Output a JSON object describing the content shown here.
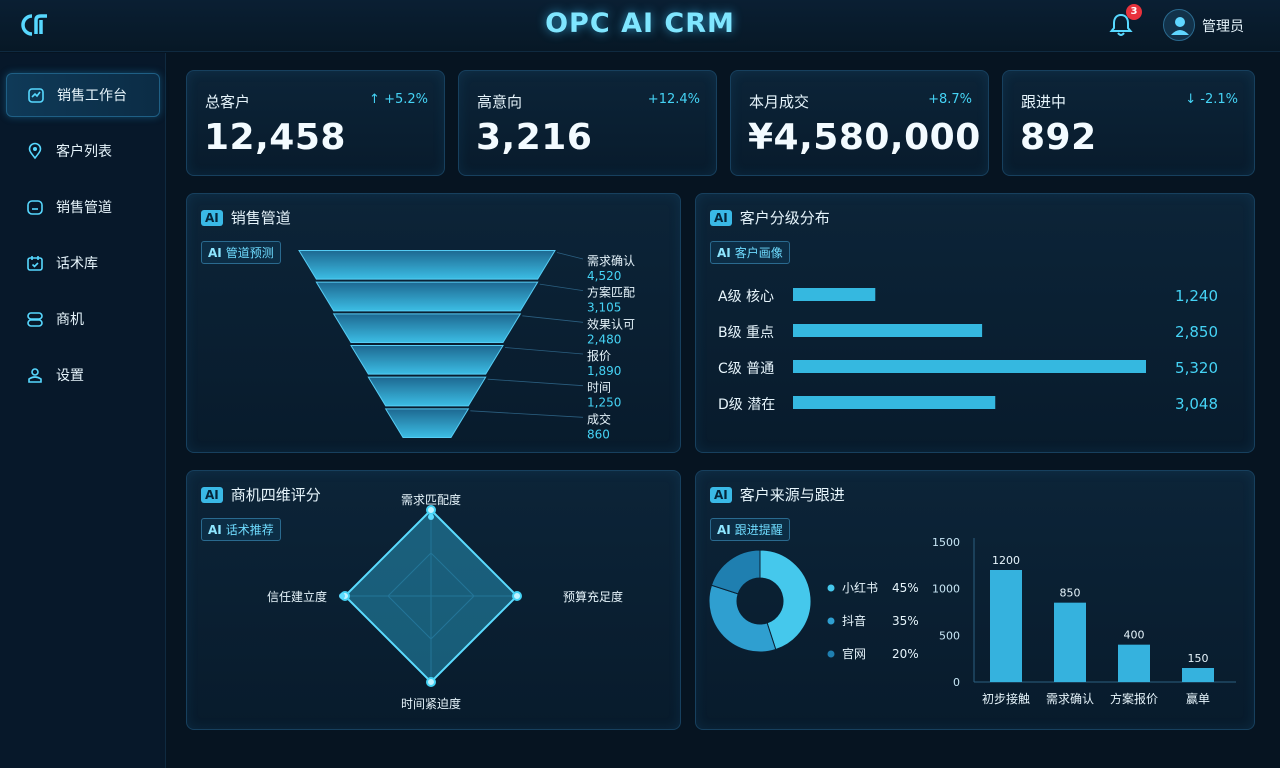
{
  "app": {
    "title": "OPC AI CRM",
    "notification_count": "3",
    "user_name": "管理员"
  },
  "sidebar": {
    "items": [
      {
        "label": "销售工作台",
        "icon": "dashboard-icon",
        "active": true
      },
      {
        "label": "客户列表",
        "icon": "location-pin-icon",
        "active": false
      },
      {
        "label": "销售管道",
        "icon": "pipeline-icon",
        "active": false
      },
      {
        "label": "话术库",
        "icon": "script-library-icon",
        "active": false
      },
      {
        "label": "商机",
        "icon": "opportunity-icon",
        "active": false
      },
      {
        "label": "设置",
        "icon": "settings-icon",
        "active": false
      }
    ]
  },
  "stats": [
    {
      "label": "总客户",
      "change": "↑ +5.2%",
      "value": "12,458"
    },
    {
      "label": "高意向",
      "change": "+12.4%",
      "value": "3,216"
    },
    {
      "label": "本月成交",
      "change": "+8.7%",
      "value": "¥4,580,000"
    },
    {
      "label": "跟进中",
      "change": "↓ -2.1%",
      "value": "892"
    }
  ],
  "panels": {
    "funnel": {
      "ai_badge": "AI",
      "title": "销售管道",
      "tag": "管道预测",
      "stages": [
        {
          "name": "需求确认",
          "value": "4,520"
        },
        {
          "name": "方案匹配",
          "value": "3,105"
        },
        {
          "name": "效果认可",
          "value": "2,480"
        },
        {
          "name": "报价",
          "value": "1,890"
        },
        {
          "name": "时间",
          "value": "1,250"
        },
        {
          "name": "成交",
          "value": "860"
        }
      ]
    },
    "grades": {
      "ai_badge": "AI",
      "title": "客户分级分布",
      "tag": "客户画像",
      "rows": [
        {
          "label": "A级  核心",
          "value": "1,240"
        },
        {
          "label": "B级  重点",
          "value": "2,850"
        },
        {
          "label": "C级  普通",
          "value": "5,320"
        },
        {
          "label": "D级  潜在",
          "value": "3,048"
        }
      ]
    },
    "radar": {
      "ai_badge": "AI",
      "title": "商机四维评分",
      "tag": "话术推荐",
      "axes": [
        "需求匹配度",
        "预算充足度",
        "时间紧迫度",
        "信任建立度"
      ]
    },
    "sources": {
      "ai_badge": "AI",
      "title": "客户来源与跟进",
      "tag": "跟进提醒",
      "legend": [
        {
          "name": "小红书",
          "pct": "45%"
        },
        {
          "name": "抖音",
          "pct": "35%"
        },
        {
          "name": "官网",
          "pct": "20%"
        }
      ]
    },
    "tag_ai_mark": "AI"
  },
  "chart_data": [
    {
      "type": "funnel",
      "categories": [
        "需求确认",
        "方案匹配",
        "效果认可",
        "报价",
        "时间",
        "成交"
      ],
      "values": [
        4520,
        3105,
        2480,
        1890,
        1250,
        860
      ]
    },
    {
      "type": "bar",
      "orientation": "horizontal",
      "categories": [
        "A级  核心",
        "B级  重点",
        "C级  普通",
        "D级  潜在"
      ],
      "values": [
        1240,
        2850,
        5320,
        3048
      ]
    },
    {
      "type": "radar",
      "categories": [
        "需求匹配度",
        "预算充足度",
        "时间紧迫度",
        "信任建立度"
      ],
      "values": [
        1,
        1,
        1,
        1
      ]
    },
    {
      "type": "pie",
      "donut": true,
      "categories": [
        "小红书",
        "抖音",
        "官网"
      ],
      "values": [
        45,
        35,
        20
      ],
      "colors": [
        "#45c8ec",
        "#2f9fd0",
        "#1f7fb0"
      ]
    },
    {
      "type": "bar",
      "categories": [
        "初步接触",
        "需求确认",
        "方案报价",
        "赢单"
      ],
      "values": [
        1200,
        850,
        400,
        150
      ],
      "ylim": [
        0,
        1500
      ],
      "yticks": [
        0,
        500,
        1000,
        1500
      ],
      "data_labels": [
        "1200",
        "850",
        "400",
        "150"
      ]
    }
  ],
  "colors": {
    "accent": "#45d3f5",
    "bar": "#35b8e0",
    "panel_border": "#17405e",
    "background": "#061421"
  }
}
